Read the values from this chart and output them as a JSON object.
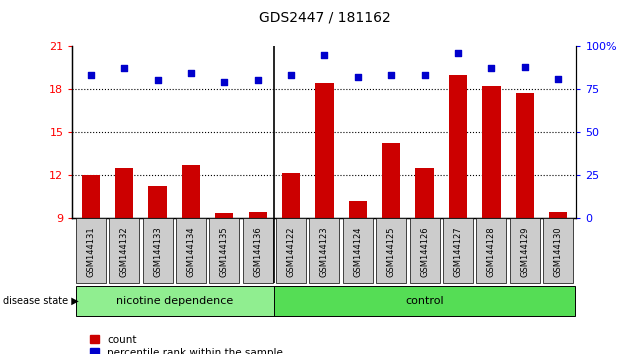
{
  "title": "GDS2447 / 181162",
  "samples": [
    "GSM144131",
    "GSM144132",
    "GSM144133",
    "GSM144134",
    "GSM144135",
    "GSM144136",
    "GSM144122",
    "GSM144123",
    "GSM144124",
    "GSM144125",
    "GSM144126",
    "GSM144127",
    "GSM144128",
    "GSM144129",
    "GSM144130"
  ],
  "counts": [
    12.0,
    12.5,
    11.2,
    12.7,
    9.3,
    9.4,
    12.1,
    18.4,
    10.2,
    14.2,
    12.5,
    19.0,
    18.2,
    17.7,
    9.4
  ],
  "percentile": [
    83,
    87,
    80,
    84,
    79,
    80,
    83,
    95,
    82,
    83,
    83,
    96,
    87,
    88,
    81
  ],
  "ylim_left": [
    9,
    21
  ],
  "ylim_right": [
    0,
    100
  ],
  "yticks_left": [
    9,
    12,
    15,
    18,
    21
  ],
  "yticks_right": [
    0,
    25,
    50,
    75,
    100
  ],
  "bar_color": "#cc0000",
  "dot_color": "#0000cc",
  "grid_color": "#000000",
  "nicotine_count": 6,
  "control_count": 9,
  "nicotine_label": "nicotine dependence",
  "control_label": "control",
  "disease_label": "disease state",
  "legend_count": "count",
  "legend_percentile": "percentile rank within the sample",
  "nicotine_color": "#90ee90",
  "control_color": "#55dd55",
  "label_bg_color": "#cccccc",
  "separator_idx": 6,
  "title_fontsize": 10,
  "tick_fontsize": 8,
  "sample_fontsize": 6,
  "group_fontsize": 8,
  "legend_fontsize": 7.5
}
